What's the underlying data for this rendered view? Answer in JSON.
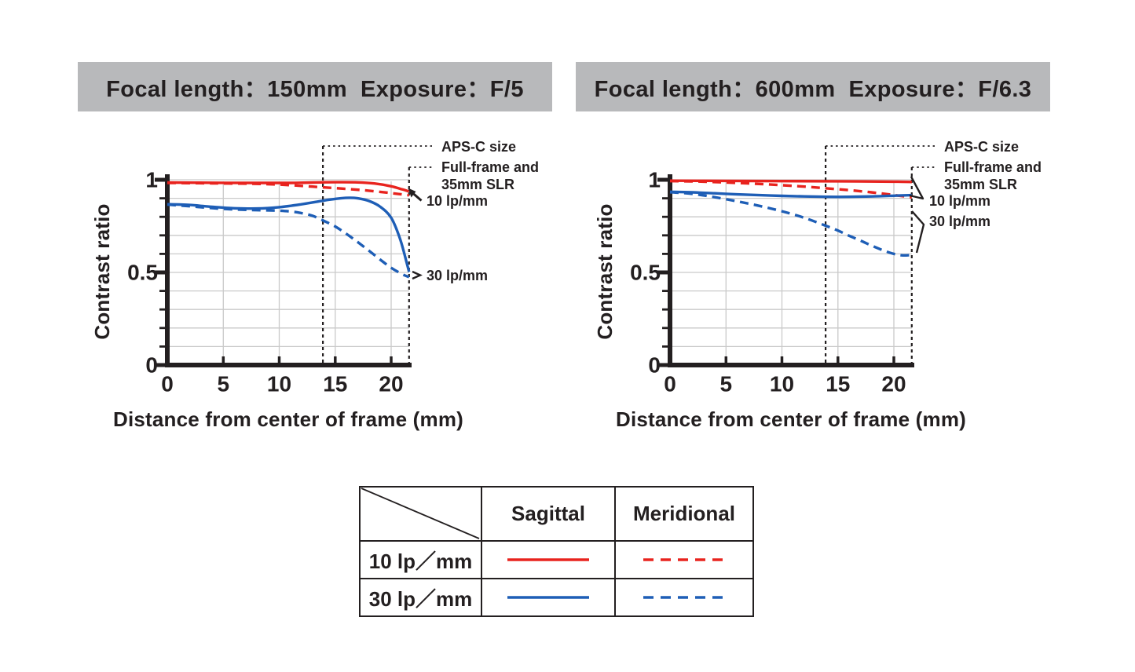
{
  "colors": {
    "red": "#e8231e",
    "blue": "#1e5eb6",
    "axis": "#231f20",
    "grid": "#cacaca",
    "banner_bg": "#b8b9bb",
    "background": "#ffffff"
  },
  "legend_table": {
    "corner_label": "",
    "col_headers": [
      "Sagittal",
      "Meridional"
    ],
    "rows": [
      {
        "label": "10 lp／mm",
        "color": "red",
        "sagittal_style": "solid",
        "meridional_style": "dashed"
      },
      {
        "label": "30 lp／mm",
        "color": "blue",
        "sagittal_style": "solid",
        "meridional_style": "dashed"
      }
    ]
  },
  "chart_data": [
    {
      "type": "line",
      "title": "Focal length：150mm  Exposure：F/5",
      "xlabel": "Distance from center of frame (mm)",
      "ylabel": "Contrast ratio",
      "xlim": [
        0,
        21.8
      ],
      "ylim": [
        0,
        1
      ],
      "xticks": [
        0,
        5,
        10,
        15,
        20
      ],
      "yticks": [
        0,
        0.5,
        1
      ],
      "ytick_labels": [
        "0",
        "0.5",
        "1"
      ],
      "y_minor_step": 0.1,
      "grid": true,
      "callout": "arrow",
      "markers": [
        {
          "label": "APS-C size",
          "x": 13.9
        },
        {
          "label_line1": "Full-frame and",
          "label_line2": "35mm SLR",
          "x": 21.6
        }
      ],
      "curve_labels": {
        "lp10": "10 lp/mm",
        "lp30": "30 lp/mm"
      },
      "series": [
        {
          "name": "10 lp/mm Sagittal",
          "color": "red",
          "dash": false,
          "points": [
            [
              0,
              0.985
            ],
            [
              4,
              0.984
            ],
            [
              8,
              0.983
            ],
            [
              11,
              0.983
            ],
            [
              13,
              0.985
            ],
            [
              15,
              0.987
            ],
            [
              17,
              0.986
            ],
            [
              18.5,
              0.98
            ],
            [
              20,
              0.965
            ],
            [
              21,
              0.948
            ],
            [
              21.6,
              0.937
            ]
          ]
        },
        {
          "name": "10 lp/mm Meridional",
          "color": "red",
          "dash": true,
          "points": [
            [
              0,
              0.983
            ],
            [
              4,
              0.981
            ],
            [
              8,
              0.978
            ],
            [
              10,
              0.974
            ],
            [
              12,
              0.967
            ],
            [
              14,
              0.959
            ],
            [
              16,
              0.951
            ],
            [
              18,
              0.941
            ],
            [
              20,
              0.928
            ],
            [
              21.6,
              0.916
            ]
          ]
        },
        {
          "name": "30 lp/mm Sagittal",
          "color": "blue",
          "dash": false,
          "points": [
            [
              0,
              0.868
            ],
            [
              2,
              0.864
            ],
            [
              4,
              0.854
            ],
            [
              6,
              0.846
            ],
            [
              8,
              0.845
            ],
            [
              10,
              0.852
            ],
            [
              12,
              0.868
            ],
            [
              14,
              0.888
            ],
            [
              15.5,
              0.9
            ],
            [
              16.3,
              0.903
            ],
            [
              17,
              0.9
            ],
            [
              18,
              0.886
            ],
            [
              19,
              0.855
            ],
            [
              20,
              0.795
            ],
            [
              20.8,
              0.68
            ],
            [
              21.4,
              0.55
            ],
            [
              21.6,
              0.503
            ]
          ]
        },
        {
          "name": "30 lp/mm Meridional",
          "color": "blue",
          "dash": true,
          "points": [
            [
              0,
              0.866
            ],
            [
              2,
              0.857
            ],
            [
              4,
              0.847
            ],
            [
              6,
              0.84
            ],
            [
              8,
              0.836
            ],
            [
              10,
              0.833
            ],
            [
              11,
              0.829
            ],
            [
              12,
              0.82
            ],
            [
              13,
              0.805
            ],
            [
              14,
              0.778
            ],
            [
              15,
              0.748
            ],
            [
              16,
              0.708
            ],
            [
              17,
              0.664
            ],
            [
              18,
              0.618
            ],
            [
              19,
              0.57
            ],
            [
              20,
              0.525
            ],
            [
              21,
              0.49
            ],
            [
              21.6,
              0.475
            ]
          ]
        }
      ]
    },
    {
      "type": "line",
      "title": "Focal length：600mm  Exposure：F/6.3",
      "xlabel": "Distance from center of frame (mm)",
      "ylabel": "Contrast ratio",
      "xlim": [
        0,
        21.8
      ],
      "ylim": [
        0,
        1
      ],
      "xticks": [
        0,
        5,
        10,
        15,
        20
      ],
      "yticks": [
        0,
        0.5,
        1
      ],
      "ytick_labels": [
        "0",
        "0.5",
        "1"
      ],
      "y_minor_step": 0.1,
      "grid": true,
      "callout": "brace",
      "markers": [
        {
          "label": "APS-C size",
          "x": 13.9
        },
        {
          "label_line1": "Full-frame and",
          "label_line2": "35mm SLR",
          "x": 21.6
        }
      ],
      "curve_labels": {
        "lp10": "10 lp/mm",
        "lp30": "30 lp/mm"
      },
      "series": [
        {
          "name": "10 lp/mm Sagittal",
          "color": "red",
          "dash": false,
          "points": [
            [
              0,
              0.995
            ],
            [
              5,
              0.994
            ],
            [
              10,
              0.993
            ],
            [
              15,
              0.992
            ],
            [
              20,
              0.99
            ],
            [
              21.6,
              0.988
            ]
          ]
        },
        {
          "name": "10 lp/mm Meridional",
          "color": "red",
          "dash": true,
          "points": [
            [
              0,
              0.993
            ],
            [
              3,
              0.99
            ],
            [
              6,
              0.983
            ],
            [
              9,
              0.974
            ],
            [
              12,
              0.963
            ],
            [
              14,
              0.954
            ],
            [
              16,
              0.944
            ],
            [
              18,
              0.932
            ],
            [
              20,
              0.918
            ],
            [
              21.6,
              0.905
            ]
          ]
        },
        {
          "name": "30 lp/mm Sagittal",
          "color": "blue",
          "dash": false,
          "points": [
            [
              0,
              0.935
            ],
            [
              2,
              0.932
            ],
            [
              4,
              0.927
            ],
            [
              6,
              0.921
            ],
            [
              8,
              0.917
            ],
            [
              10,
              0.913
            ],
            [
              12,
              0.91
            ],
            [
              14,
              0.908
            ],
            [
              16,
              0.908
            ],
            [
              18,
              0.91
            ],
            [
              20,
              0.914
            ],
            [
              21.6,
              0.917
            ]
          ]
        },
        {
          "name": "30 lp/mm Meridional",
          "color": "blue",
          "dash": true,
          "points": [
            [
              0,
              0.933
            ],
            [
              2,
              0.924
            ],
            [
              4,
              0.906
            ],
            [
              6,
              0.884
            ],
            [
              8,
              0.859
            ],
            [
              10,
              0.83
            ],
            [
              12,
              0.795
            ],
            [
              14,
              0.75
            ],
            [
              15,
              0.726
            ],
            [
              16,
              0.698
            ],
            [
              17,
              0.672
            ],
            [
              18,
              0.645
            ],
            [
              19,
              0.62
            ],
            [
              20,
              0.6
            ],
            [
              20.8,
              0.592
            ],
            [
              21.6,
              0.594
            ]
          ]
        }
      ]
    }
  ]
}
